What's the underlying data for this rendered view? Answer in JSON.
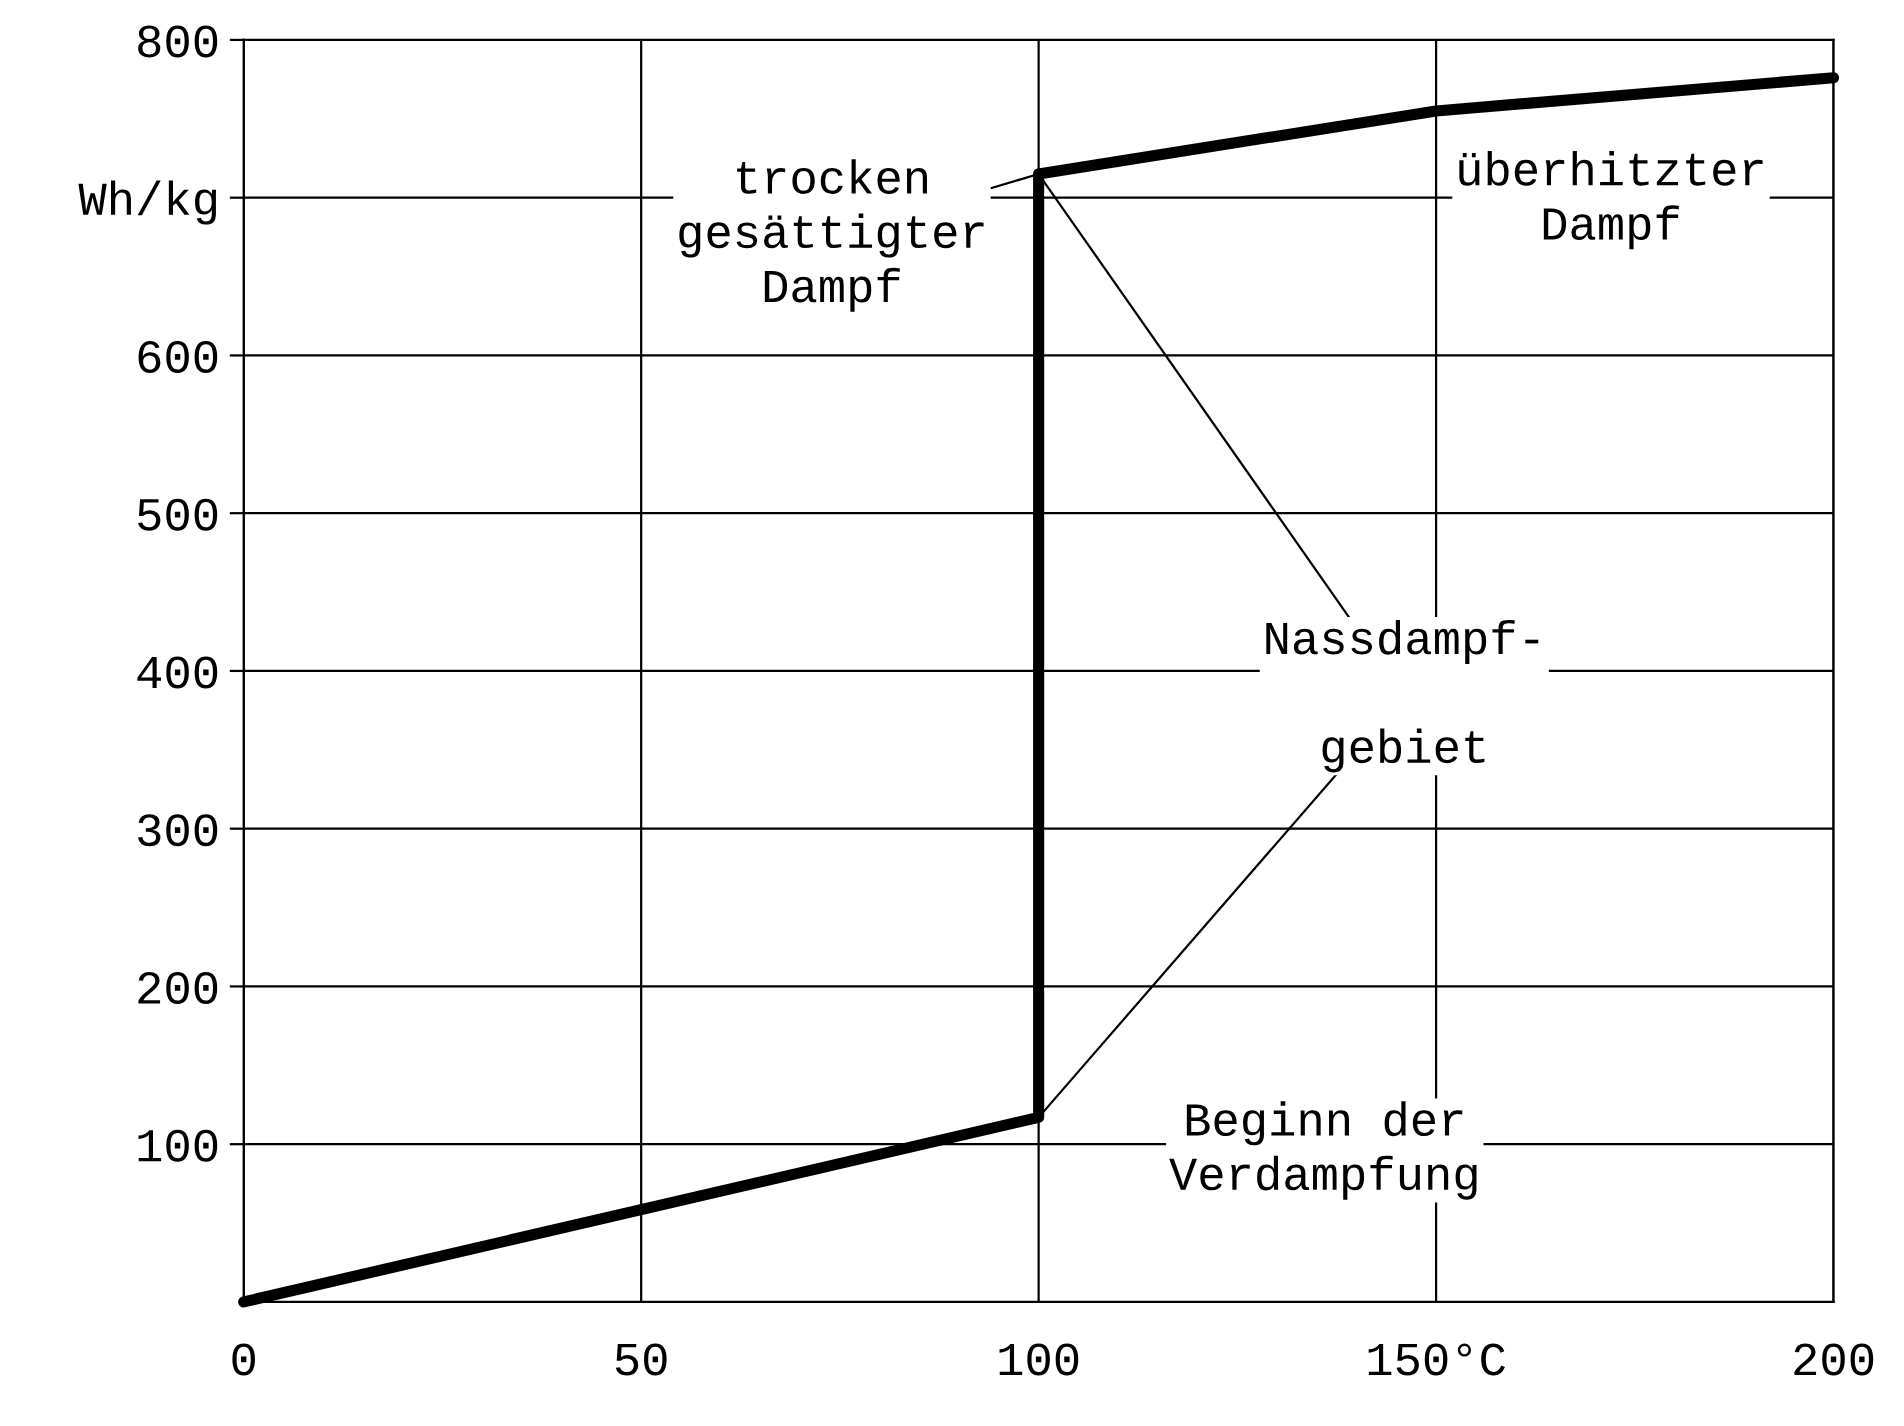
{
  "chart_data": {
    "type": "line",
    "x": [
      0,
      100,
      100,
      150,
      200
    ],
    "values": [
      0,
      117,
      715,
      755,
      776
    ],
    "color": "#000000",
    "xlim": [
      0,
      200
    ],
    "ylim": [
      0,
      800
    ],
    "xticks": [
      0,
      50,
      100,
      {
        "value": 150,
        "label": "150°C"
      },
      200
    ],
    "yticks": [
      100,
      200,
      300,
      400,
      500,
      600,
      {
        "value": 700,
        "label": "Wh/kg"
      },
      800
    ],
    "grid": true,
    "annotations": [
      "trocken\ngesättigter\nDampf",
      "überhitzter\nDampf",
      "Nassdampf-\n\ngebiet",
      "Beginn der\nVerdampfung"
    ]
  }
}
